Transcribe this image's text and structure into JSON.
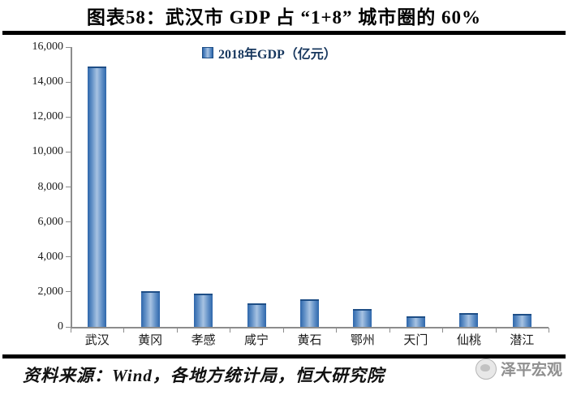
{
  "header": {
    "title": "图表58：武汉市 GDP 占 “1+8” 城市圈的 60%"
  },
  "legend": {
    "label": "2018年GDP（亿元）"
  },
  "footer": {
    "source": "资料来源：Wind，各地方统计局，恒大研究院",
    "watermark": "泽平宏观"
  },
  "colors": {
    "bar_edge": "#2d66ab",
    "bar_center": "#a8c3e2",
    "bar_cap": "#1e4e86",
    "axis_gray": "#8c8c8c",
    "legend_text": "#17375e",
    "watermark_text": "#8f8f8f"
  },
  "chart_data": {
    "type": "bar",
    "title": "图表58：武汉市 GDP 占 “1+8” 城市圈的 60%",
    "categories": [
      "武汉",
      "黄冈",
      "孝感",
      "咸宁",
      "黄石",
      "鄂州",
      "天门",
      "仙桃",
      "潜江"
    ],
    "series": [
      {
        "name": "2018年GDP（亿元）",
        "values": [
          14900,
          2050,
          1900,
          1340,
          1560,
          1005,
          600,
          800,
          745
        ]
      }
    ],
    "xlabel": "",
    "ylabel": "",
    "unit": "亿元",
    "ylim": [
      0,
      16000
    ],
    "ytick_interval": 2000,
    "ytick_labels": [
      "0",
      "2,000",
      "4,000",
      "6,000",
      "8,000",
      "10,000",
      "12,000",
      "14,000",
      "16,000"
    ],
    "grid": false,
    "legend_position": "top-center"
  }
}
